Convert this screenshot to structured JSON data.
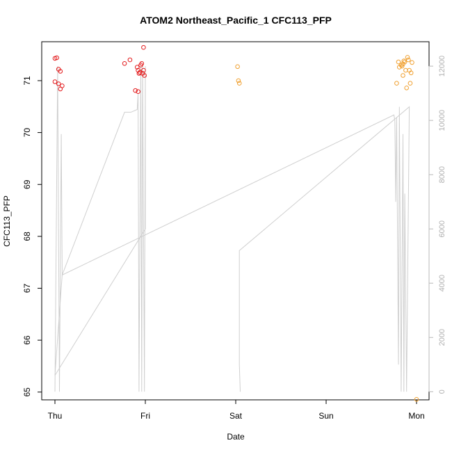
{
  "chart_data": {
    "type": "scatter",
    "title": "ATOM2 Northeast_Pacific_1 CFC113_PFP",
    "xlabel": "Date",
    "ylabel": "CFC113_PFP",
    "x_ticks": [
      "Thu",
      "Fri",
      "Sat",
      "Sun",
      "Mon"
    ],
    "x_range": [
      0,
      4
    ],
    "ylim": [
      64.85,
      71.75
    ],
    "y_ticks": [
      65,
      66,
      67,
      68,
      69,
      70,
      71
    ],
    "y2_ticks": [
      0,
      2000,
      4000,
      6000,
      8000,
      10000,
      12000
    ],
    "y2lim": [
      -300,
      12900
    ],
    "colors": {
      "series_a": "#e31a1c",
      "series_b": "#f0a030",
      "altitude_line": "#cfcfcf",
      "right_axis": "#b8b8b8"
    },
    "series": [
      {
        "color": "#e31a1c",
        "points": [
          [
            0.0,
            71.43
          ],
          [
            0.02,
            71.44
          ],
          [
            0.0,
            70.98
          ],
          [
            0.04,
            71.22
          ],
          [
            0.06,
            71.18
          ],
          [
            0.04,
            70.94
          ],
          [
            0.06,
            70.84
          ],
          [
            0.08,
            70.9
          ],
          [
            0.77,
            71.33
          ],
          [
            0.83,
            71.4
          ],
          [
            0.89,
            70.81
          ],
          [
            0.92,
            70.79
          ],
          [
            0.91,
            71.26
          ],
          [
            0.92,
            71.2
          ],
          [
            0.94,
            71.16
          ],
          [
            0.93,
            71.14
          ],
          [
            0.95,
            71.3
          ],
          [
            0.96,
            71.33
          ],
          [
            0.97,
            71.14
          ],
          [
            0.98,
            71.2
          ],
          [
            0.98,
            71.64
          ],
          [
            0.99,
            71.1
          ]
        ]
      },
      {
        "color": "#f0a030",
        "points": [
          [
            2.02,
            71.27
          ],
          [
            2.03,
            71.0
          ],
          [
            2.04,
            70.95
          ],
          [
            3.78,
            70.95
          ],
          [
            3.8,
            71.36
          ],
          [
            3.81,
            71.26
          ],
          [
            3.83,
            71.3
          ],
          [
            3.84,
            71.28
          ],
          [
            3.85,
            71.32
          ],
          [
            3.86,
            71.38
          ],
          [
            3.87,
            71.36
          ],
          [
            3.85,
            71.1
          ],
          [
            3.88,
            71.2
          ],
          [
            3.89,
            70.86
          ],
          [
            3.9,
            71.45
          ],
          [
            3.91,
            71.4
          ],
          [
            3.92,
            71.2
          ],
          [
            3.93,
            70.95
          ],
          [
            3.94,
            71.15
          ],
          [
            3.95,
            71.35
          ],
          [
            4.0,
            64.86
          ]
        ]
      }
    ],
    "altitude_line": [
      [
        0.0,
        0
      ],
      [
        0.03,
        12000
      ],
      [
        0.05,
        0
      ],
      [
        0.07,
        9500
      ],
      [
        0.08,
        4300
      ],
      [
        0.0,
        600
      ],
      [
        1.0,
        6000
      ],
      [
        1.0,
        12000
      ],
      [
        0.99,
        0
      ],
      [
        0.97,
        12000
      ],
      [
        0.96,
        0
      ],
      [
        0.95,
        12000
      ],
      [
        0.93,
        0
      ],
      [
        0.92,
        11000
      ],
      [
        0.91,
        10400
      ],
      [
        0.84,
        10300
      ],
      [
        0.77,
        10300
      ],
      [
        0.08,
        4300
      ],
      [
        3.75,
        10200
      ],
      [
        3.76,
        10000
      ],
      [
        3.77,
        7000
      ],
      [
        3.78,
        10100
      ],
      [
        3.8,
        1000
      ],
      [
        3.81,
        10500
      ],
      [
        3.83,
        0
      ],
      [
        3.85,
        9500
      ],
      [
        3.86,
        0
      ],
      [
        3.87,
        7300
      ],
      [
        3.89,
        0
      ],
      [
        3.92,
        10500
      ],
      [
        2.04,
        5200
      ],
      [
        2.04,
        1000
      ],
      [
        2.05,
        0
      ]
    ]
  }
}
